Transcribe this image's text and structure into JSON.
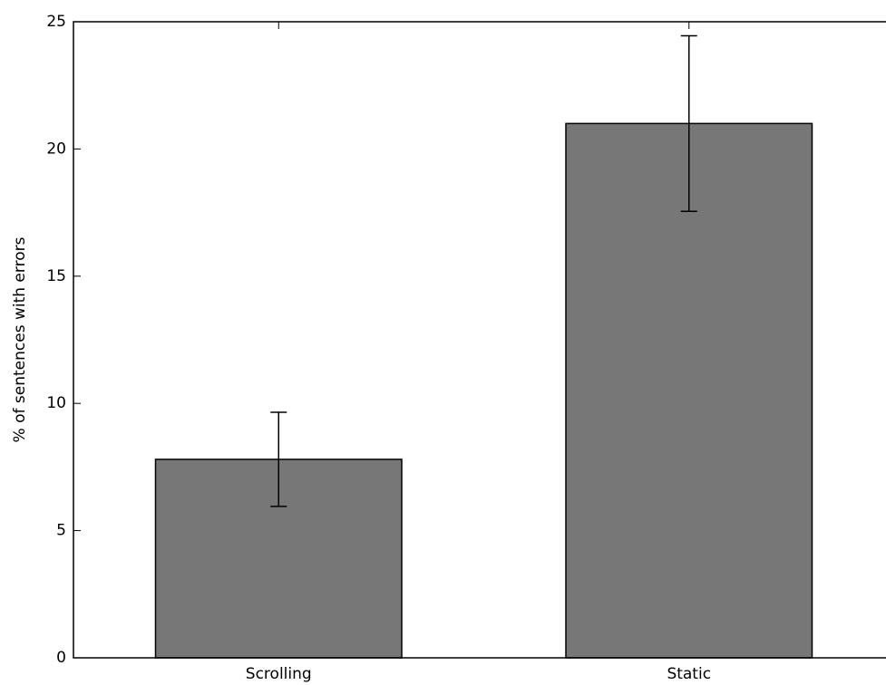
{
  "chart_data": {
    "type": "bar",
    "ylabel": "% of sentences with errors",
    "categories": [
      "Scrolling",
      "Static"
    ],
    "values": [
      7.8,
      21.0
    ],
    "errors": [
      1.85,
      3.45
    ],
    "color": "#777777",
    "ylim": [
      0,
      25
    ],
    "yticks": [
      0,
      5,
      10,
      15,
      20,
      25
    ]
  }
}
